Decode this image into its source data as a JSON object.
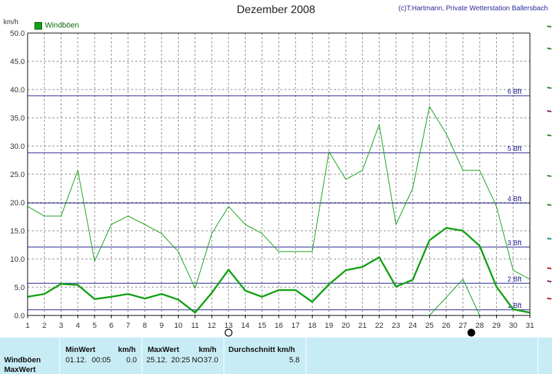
{
  "header": {
    "title": "Dezember 2008",
    "copyright": "(c)T.Hartmann, Private Wetterstation Ballersbach",
    "unit": "km/h",
    "legend_label": "Windböen"
  },
  "chart_data": {
    "type": "line",
    "title": "Dezember 2008",
    "ylabel": "km/h",
    "x": [
      1,
      2,
      3,
      4,
      5,
      6,
      7,
      8,
      9,
      10,
      11,
      12,
      13,
      14,
      15,
      16,
      17,
      18,
      19,
      20,
      21,
      22,
      23,
      24,
      25,
      26,
      27,
      28,
      29,
      30,
      31
    ],
    "ylim": [
      0,
      50
    ],
    "xlim": [
      1,
      31
    ],
    "y_ticks": [
      "0.0",
      "5.0",
      "10.0",
      "15.0",
      "20.0",
      "25.0",
      "30.0",
      "35.0",
      "40.0",
      "45.0",
      "50.0"
    ],
    "y_tick_values": [
      0,
      5,
      10,
      15,
      20,
      25,
      30,
      35,
      40,
      45,
      50
    ],
    "x_ticks": [
      "1",
      "2",
      "3",
      "4",
      "5",
      "6",
      "7",
      "8",
      "9",
      "10",
      "11",
      "12",
      "13",
      "14",
      "15",
      "16",
      "17",
      "18",
      "19",
      "20",
      "21",
      "22",
      "23",
      "24",
      "25",
      "26",
      "27",
      "28",
      "29",
      "30",
      "31"
    ],
    "grid": true,
    "legend": "top-left",
    "series": [
      {
        "name": "Windböen",
        "style": "max",
        "values": [
          19.3,
          17.6,
          17.6,
          25.7,
          9.6,
          16.1,
          17.6,
          16.1,
          14.5,
          11.3,
          4.8,
          14.5,
          19.3,
          16.1,
          14.5,
          11.3,
          11.3,
          11.3,
          29.0,
          24.1,
          25.7,
          33.8,
          16.1,
          22.5,
          37.0,
          32.2,
          25.7,
          25.7,
          19.3,
          8.0,
          6.4
        ]
      },
      {
        "style": "avg",
        "values": [
          3.3,
          3.8,
          5.6,
          5.4,
          2.9,
          3.3,
          3.8,
          3.0,
          3.8,
          2.8,
          0.5,
          4.0,
          8.1,
          4.4,
          3.3,
          4.5,
          4.5,
          2.4,
          5.5,
          8.0,
          8.6,
          10.3,
          5.1,
          6.3,
          13.3,
          15.5,
          15.0,
          12.3,
          5.1,
          1.1,
          0.5
        ]
      },
      {
        "style": "min",
        "x": [
          25,
          26,
          27,
          28
        ],
        "values": [
          0,
          3.2,
          6.4,
          0
        ]
      }
    ],
    "beaufort_lines": [
      {
        "label": "1 Bft",
        "value": 1.0
      },
      {
        "label": "2 Bft",
        "value": 5.7
      },
      {
        "label": "3 Bft",
        "value": 12.1
      },
      {
        "label": "4 Bft",
        "value": 19.9
      },
      {
        "label": "5 Bft",
        "value": 28.8
      },
      {
        "label": "6 Bft",
        "value": 38.9
      }
    ],
    "moon_markers": [
      {
        "day": 13,
        "phase": "full-moon"
      },
      {
        "day": 27.5,
        "phase": "new-moon"
      }
    ],
    "colors": {
      "line": "#10a010",
      "beaufort": "#1a1a8c",
      "grid": "#888888",
      "axis": "#000000"
    }
  },
  "stats": {
    "row_labels": [
      "Windböen",
      "MaxWert"
    ],
    "min_header": "MinWert",
    "min_unit": "km/h",
    "min_date": "01.12.",
    "min_time": "00:05",
    "min_value": "0.0",
    "max_header": "MaxWert",
    "max_unit": "km/h",
    "max_date": "25.12.",
    "max_time": "20:25",
    "max_dir": "NO",
    "max_value": "37.0",
    "avg_header": "Durchschnitt km/h",
    "avg_value": "5.8"
  }
}
